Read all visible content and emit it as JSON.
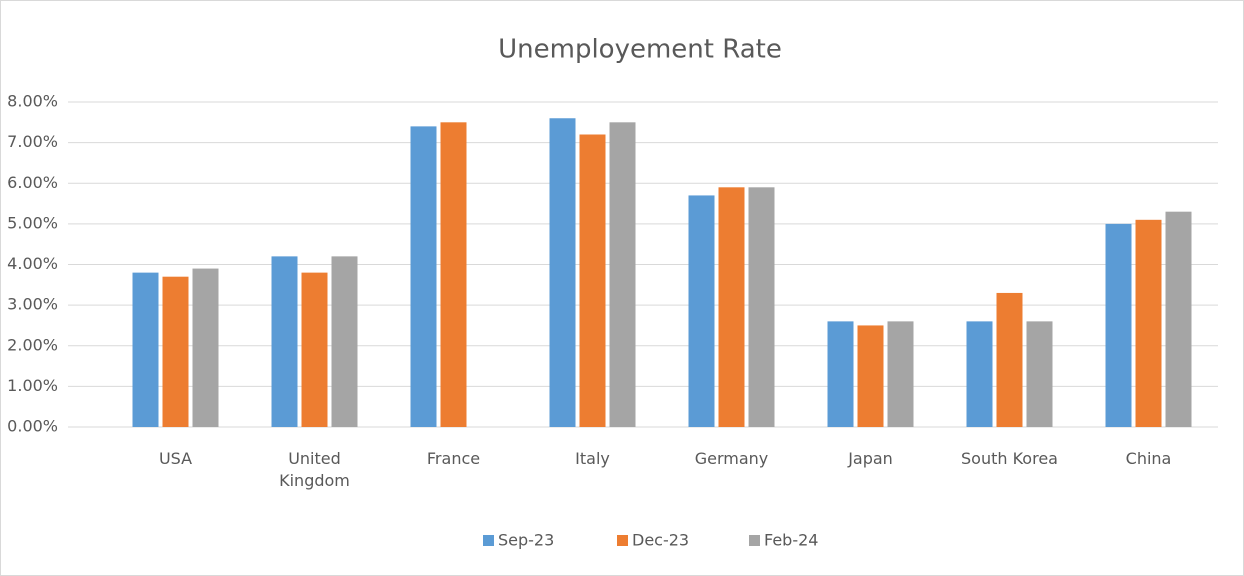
{
  "chart_data": {
    "type": "bar",
    "title": "Unemployement Rate",
    "categories": [
      "USA",
      "United Kingdom",
      "France",
      "Italy",
      "Germany",
      "Japan",
      "South Korea",
      "China"
    ],
    "series": [
      {
        "name": "Sep-23",
        "color": "#5b9bd5",
        "values": [
          3.8,
          4.2,
          7.4,
          7.6,
          5.7,
          2.6,
          2.6,
          5.0
        ]
      },
      {
        "name": "Dec-23",
        "color": "#ed7d31",
        "values": [
          3.7,
          3.8,
          7.5,
          7.2,
          5.9,
          2.5,
          3.3,
          5.1
        ]
      },
      {
        "name": "Feb-24",
        "color": "#a5a5a5",
        "values": [
          3.9,
          4.2,
          null,
          7.5,
          5.9,
          2.6,
          2.6,
          5.3
        ]
      }
    ],
    "ylim": [
      0,
      8
    ],
    "yticks": [
      {
        "value": 0,
        "label": "0.00%"
      },
      {
        "value": 1,
        "label": "1.00%"
      },
      {
        "value": 2,
        "label": "2.00%"
      },
      {
        "value": 3,
        "label": "3.00%"
      },
      {
        "value": 4,
        "label": "4.00%"
      },
      {
        "value": 5,
        "label": "5.00%"
      },
      {
        "value": 6,
        "label": "6.00%"
      },
      {
        "value": 7,
        "label": "7.00%"
      },
      {
        "value": 8,
        "label": "8.00%"
      }
    ],
    "grid": true,
    "legend": "bottom"
  }
}
